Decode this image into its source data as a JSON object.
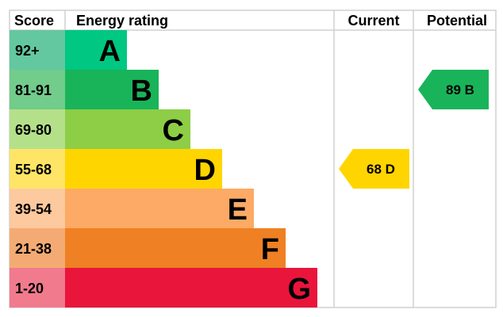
{
  "chart_data": {
    "type": "bar",
    "headers": {
      "score": "Score",
      "rating": "Energy rating",
      "current": "Current",
      "potential": "Potential"
    },
    "bands": [
      {
        "letter": "A",
        "range": "92+",
        "color": "#00c781",
        "score_color": "#63c8a0"
      },
      {
        "letter": "B",
        "range": "81-91",
        "color": "#19b459",
        "score_color": "#72cc8b"
      },
      {
        "letter": "C",
        "range": "69-80",
        "color": "#8dce46",
        "score_color": "#b5e08a"
      },
      {
        "letter": "D",
        "range": "55-68",
        "color": "#ffd500",
        "score_color": "#ffe566"
      },
      {
        "letter": "E",
        "range": "39-54",
        "color": "#fcaa65",
        "score_color": "#fdc99e"
      },
      {
        "letter": "F",
        "range": "21-38",
        "color": "#ef8023",
        "score_color": "#f4ab73"
      },
      {
        "letter": "G",
        "range": "1-20",
        "color": "#e9153b",
        "score_color": "#f27a8d"
      }
    ],
    "current": {
      "value": 68,
      "letter": "D",
      "label": "68  D"
    },
    "potential": {
      "value": 89,
      "letter": "B",
      "label": "89  B"
    }
  }
}
